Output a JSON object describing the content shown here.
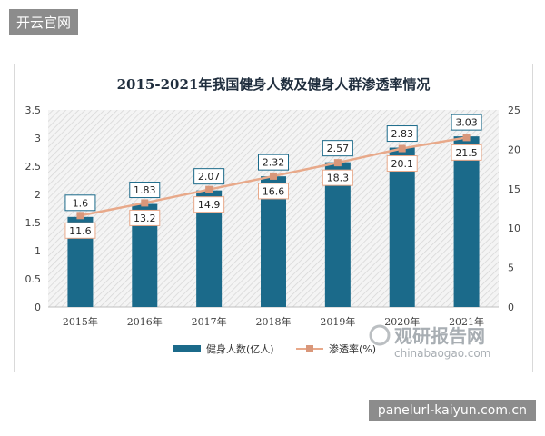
{
  "watermark_top": "开云官网",
  "watermark_bottom": "panelurl-kaiyun.com.cn",
  "site_watermark": {
    "name": "观研报告网",
    "url": "chinabaogao.com"
  },
  "chart_data": {
    "type": "bar",
    "title": "2015-2021年我国健身人数及健身人群渗透率情况",
    "categories": [
      "2015年",
      "2016年",
      "2017年",
      "2018年",
      "2019年",
      "2020年",
      "2021年"
    ],
    "series": [
      {
        "name": "健身人数(亿人)",
        "type": "bar",
        "axis": "left",
        "values": [
          1.6,
          1.83,
          2.07,
          2.32,
          2.57,
          2.83,
          3.03
        ],
        "color": "#1b6a8a"
      },
      {
        "name": "渗透率(%)",
        "type": "line",
        "axis": "right",
        "values": [
          11.6,
          13.2,
          14.9,
          16.6,
          18.3,
          20.1,
          21.5
        ],
        "color": "#e8a98a"
      }
    ],
    "y_left": {
      "min": 0,
      "max": 3.5,
      "ticks": [
        "0",
        "0.5",
        "1",
        "1.5",
        "2",
        "2.5",
        "3",
        "3.5"
      ]
    },
    "y_right": {
      "min": 0,
      "max": 25,
      "ticks": [
        "0",
        "5",
        "10",
        "15",
        "20",
        "25"
      ]
    },
    "legend": "bottom",
    "grid": false
  }
}
